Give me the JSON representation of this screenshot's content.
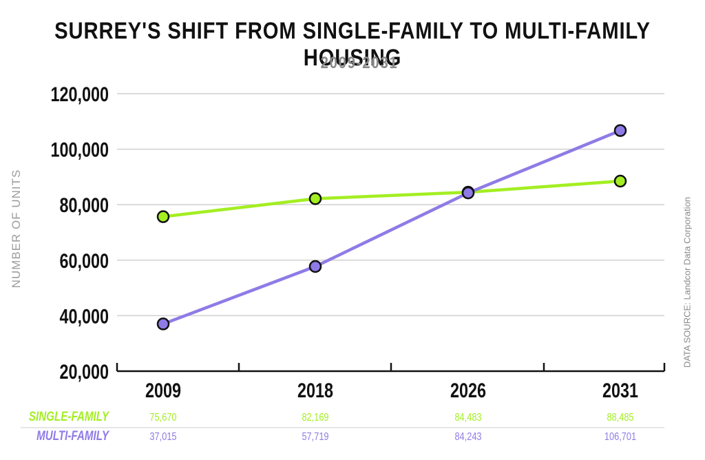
{
  "title": "SURREY'S SHIFT FROM SINGLE-FAMILY TO MULTI-FAMILY HOUSING",
  "subtitle": "2009-2031",
  "ylabel": "NUMBER OF UNITS",
  "source": "DATA SOURCE: Landcor Data Corporation",
  "colors": {
    "single_family": "#a3ee22",
    "multi_family": "#8f7be6",
    "grid": "#d0d0d0",
    "axis": "#111111"
  },
  "chart_data": {
    "type": "line",
    "title": "SURREY'S SHIFT FROM SINGLE-FAMILY TO MULTI-FAMILY HOUSING",
    "subtitle": "2009-2031",
    "xlabel": "",
    "ylabel": "NUMBER OF UNITS",
    "categories": [
      "2009",
      "2018",
      "2026",
      "2031"
    ],
    "ylim": [
      20000,
      120000
    ],
    "yticks": [
      20000,
      40000,
      60000,
      80000,
      100000,
      120000
    ],
    "ytick_labels": [
      "20,000",
      "40,000",
      "60,000",
      "80,000",
      "100,000",
      "120,000"
    ],
    "grid": true,
    "series": [
      {
        "name": "SINGLE-FAMILY",
        "values": [
          75670,
          82169,
          84483,
          88485
        ],
        "labels": [
          "75,670",
          "82,169",
          "84,483",
          "88,485"
        ],
        "color": "#a3ee22"
      },
      {
        "name": "MULTI-FAMILY",
        "values": [
          37015,
          57719,
          84243,
          106701
        ],
        "labels": [
          "37,015",
          "57,719",
          "84,243",
          "106,701"
        ],
        "color": "#8f7be6"
      }
    ]
  }
}
